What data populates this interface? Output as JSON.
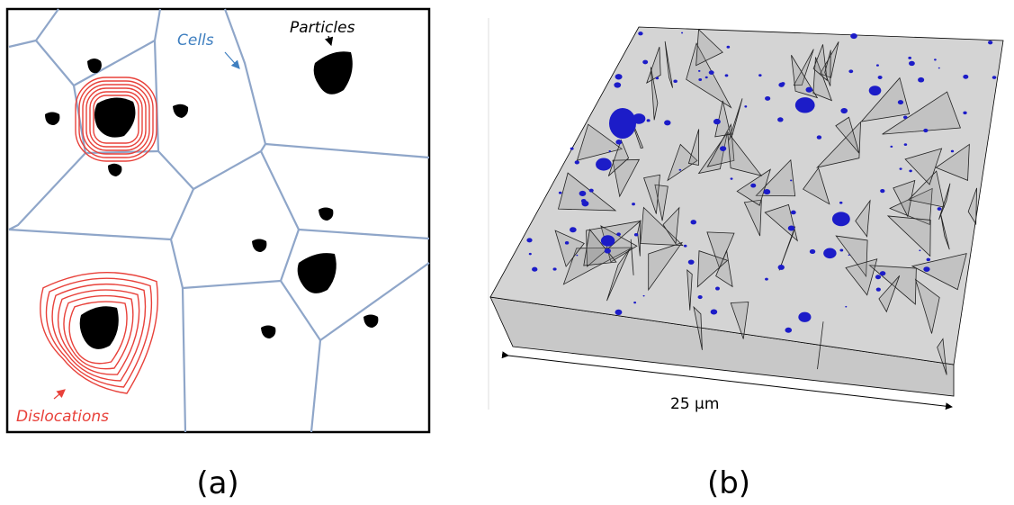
{
  "panel_a": {
    "labels": {
      "cells": "Cells",
      "particles": "Particles",
      "dislocations": "Dislocations"
    },
    "caption": "(a)"
  },
  "panel_b": {
    "scale_label": "25 µm",
    "caption": "(b)"
  }
}
